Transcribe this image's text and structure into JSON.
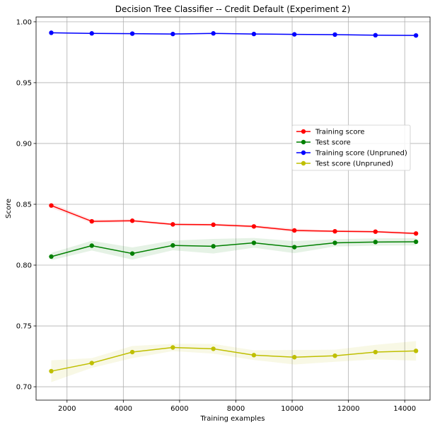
{
  "chart_data": {
    "type": "line",
    "title": "Decision Tree Classifier -- Credit Default (Experiment 2)",
    "xlabel": "Training examples",
    "ylabel": "Score",
    "xlim": [
      900,
      14900
    ],
    "ylim": [
      0.689,
      1.004
    ],
    "xticks": [
      2000,
      4000,
      6000,
      8000,
      10000,
      12000,
      14000
    ],
    "yticks": [
      0.7,
      0.75,
      0.8,
      0.85,
      0.9,
      0.95,
      1.0
    ],
    "ytick_labels": [
      "0.70",
      "0.75",
      "0.80",
      "0.85",
      "0.90",
      "0.95",
      "1.00"
    ],
    "grid": true,
    "legend_position": "center-right",
    "x": [
      1440,
      2880,
      4320,
      5760,
      7200,
      8640,
      10080,
      11520,
      12960,
      14400
    ],
    "series": [
      {
        "name": "Training score",
        "color": "#ff0000",
        "values": [
          0.849,
          0.836,
          0.8365,
          0.8335,
          0.8332,
          0.8318,
          0.8285,
          0.8278,
          0.8275,
          0.826
        ],
        "band": [
          0.002,
          0.0015,
          0.0012,
          0.001,
          0.001,
          0.0012,
          0.0015,
          0.001,
          0.001,
          0.001
        ]
      },
      {
        "name": "Test score",
        "color": "#008000",
        "values": [
          0.807,
          0.816,
          0.8095,
          0.8162,
          0.8155,
          0.8183,
          0.8148,
          0.8183,
          0.819,
          0.8192
        ],
        "band": [
          0.003,
          0.004,
          0.005,
          0.004,
          0.006,
          0.004,
          0.005,
          0.003,
          0.003,
          0.003
        ]
      },
      {
        "name": "Training score (Unpruned)",
        "color": "#0000ff",
        "values": [
          0.991,
          0.9905,
          0.9903,
          0.99,
          0.9905,
          0.99,
          0.9897,
          0.9895,
          0.989,
          0.9888
        ],
        "band": [
          0.0005,
          0.0005,
          0.0005,
          0.0005,
          0.0005,
          0.0005,
          0.0005,
          0.0005,
          0.0005,
          0.0005
        ]
      },
      {
        "name": "Test score (Unpruned)",
        "color": "#bfbf00",
        "values": [
          0.7128,
          0.7195,
          0.7285,
          0.7323,
          0.7312,
          0.726,
          0.7243,
          0.7255,
          0.7285,
          0.7295
        ],
        "band": [
          0.009,
          0.004,
          0.005,
          0.003,
          0.004,
          0.004,
          0.006,
          0.005,
          0.006,
          0.008
        ]
      }
    ]
  }
}
